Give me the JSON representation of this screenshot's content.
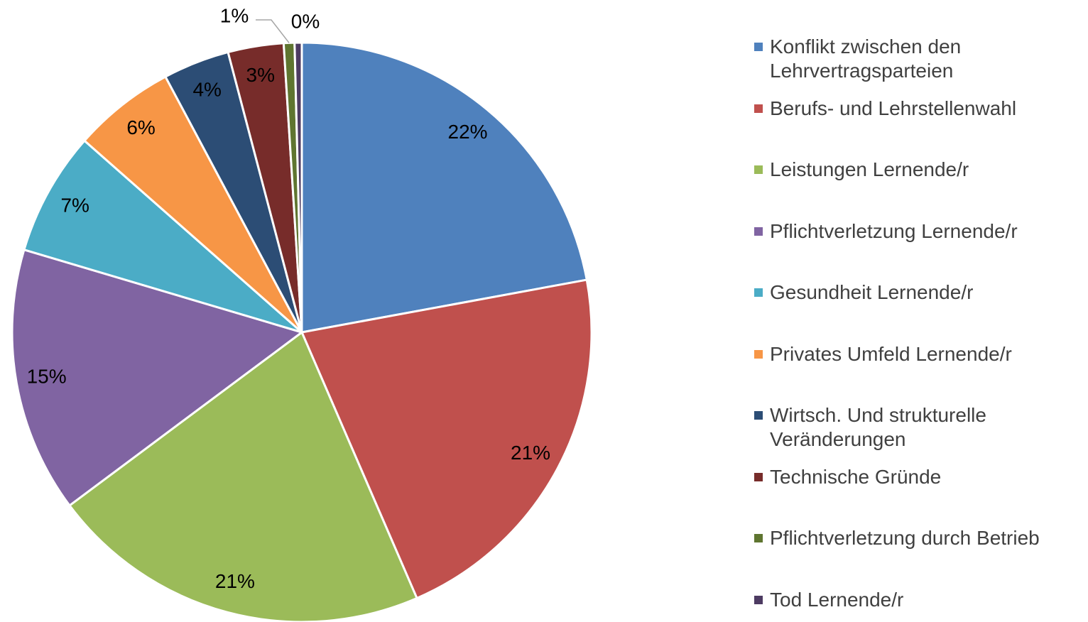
{
  "chart_data": {
    "type": "pie",
    "categories": [
      "Konflikt zwischen den Lehrvertragsparteien",
      "Berufs- und Lehrstellenwahl",
      "Leistungen Lernende/r",
      "Pflichtverletzung Lernende/r",
      "Gesundheit Lernende/r",
      "Privates Umfeld Lernende/r",
      "Wirtsch. Und strukturelle Veränderungen",
      "Technische Gründe",
      "Pflichtverletzung durch Betrieb",
      "Tod Lernende/r"
    ],
    "values": [
      22.1,
      21.4,
      21.3,
      14.8,
      6.9,
      5.7,
      3.7,
      3.1,
      0.6,
      0.4
    ],
    "value_labels": [
      "22%",
      "21%",
      "21%",
      "15%",
      "7%",
      "6%",
      "4%",
      "3%",
      "1%",
      "0%"
    ],
    "colors": [
      "#4f81bd",
      "#c0504d",
      "#9bbb59",
      "#8064a2",
      "#4bacc6",
      "#f79646",
      "#2c4d75",
      "#772c2a",
      "#5f7530",
      "#4d3b62"
    ],
    "legend": "right"
  }
}
